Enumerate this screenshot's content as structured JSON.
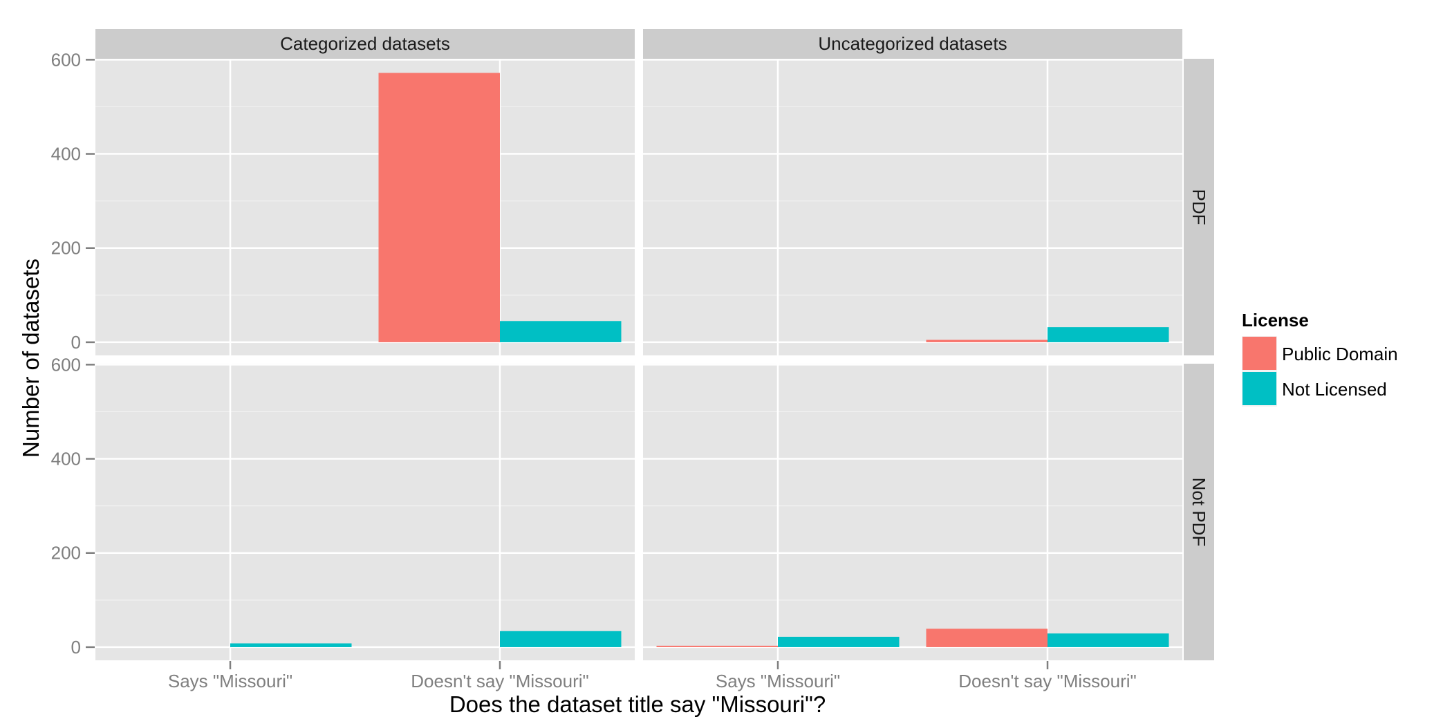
{
  "chart_data": {
    "type": "bar",
    "facet_columns": [
      "Categorized datasets",
      "Uncategorized datasets"
    ],
    "facet_rows": [
      "PDF",
      "Not PDF"
    ],
    "categories": [
      "Says \"Missouri\"",
      "Doesn't say \"Missouri\""
    ],
    "series_order": [
      "Public Domain",
      "Not Licensed"
    ],
    "xlabel": "Does the dataset title say \"Missouri\"?",
    "ylabel": "Number of datasets",
    "ylim": [
      -28,
      602
    ],
    "yticks": [
      0,
      200,
      400,
      600
    ],
    "grid": true,
    "legend": {
      "title": "License",
      "placement": "right",
      "entries": [
        {
          "name": "Public Domain",
          "color": "#F8766D"
        },
        {
          "name": "Not Licensed",
          "color": "#00BFC4"
        }
      ]
    },
    "panels": [
      {
        "column": "Categorized datasets",
        "row": "PDF",
        "series": [
          {
            "name": "Public Domain",
            "values": [
              0,
              572
            ]
          },
          {
            "name": "Not Licensed",
            "values": [
              0,
              45
            ]
          }
        ]
      },
      {
        "column": "Uncategorized datasets",
        "row": "PDF",
        "series": [
          {
            "name": "Public Domain",
            "values": [
              0,
              5
            ]
          },
          {
            "name": "Not Licensed",
            "values": [
              0,
              32
            ]
          }
        ]
      },
      {
        "column": "Categorized datasets",
        "row": "Not PDF",
        "series": [
          {
            "name": "Public Domain",
            "values": [
              0,
              0
            ]
          },
          {
            "name": "Not Licensed",
            "values": [
              8,
              34
            ]
          }
        ]
      },
      {
        "column": "Uncategorized datasets",
        "row": "Not PDF",
        "series": [
          {
            "name": "Public Domain",
            "values": [
              3,
              39
            ]
          },
          {
            "name": "Not Licensed",
            "values": [
              22,
              29
            ]
          }
        ]
      }
    ]
  }
}
